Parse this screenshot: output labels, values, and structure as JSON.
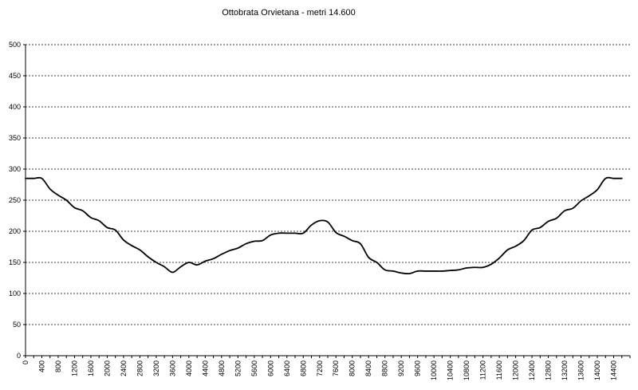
{
  "chart_data": {
    "type": "line",
    "title": "Ottobrata Orvietana  - metri 14.600",
    "xlabel": "",
    "ylabel": "",
    "xlim": [
      0,
      14800
    ],
    "ylim": [
      0,
      500
    ],
    "xticks": [
      0,
      400,
      800,
      1200,
      1600,
      2000,
      2400,
      2800,
      3200,
      3600,
      4000,
      4400,
      4800,
      5200,
      5600,
      6000,
      6400,
      6800,
      7200,
      7600,
      8000,
      8400,
      8800,
      9200,
      9600,
      10000,
      10400,
      10800,
      11200,
      11600,
      12000,
      12400,
      12800,
      13200,
      13600,
      14000,
      14400
    ],
    "yticks": [
      0,
      50,
      100,
      150,
      200,
      250,
      300,
      350,
      400,
      450,
      500
    ],
    "grid": "horizontal-dashed",
    "legend": "none",
    "series": [
      {
        "color": "#000000",
        "x": [
          0,
          200,
          400,
          600,
          800,
          1000,
          1200,
          1400,
          1600,
          1800,
          2000,
          2200,
          2400,
          2600,
          2800,
          3000,
          3200,
          3400,
          3600,
          3800,
          4000,
          4200,
          4400,
          4600,
          4800,
          5000,
          5200,
          5400,
          5600,
          5800,
          6000,
          6200,
          6400,
          6600,
          6800,
          7000,
          7200,
          7400,
          7600,
          7800,
          8000,
          8200,
          8400,
          8600,
          8800,
          9000,
          9200,
          9400,
          9600,
          9800,
          10000,
          10200,
          10400,
          10600,
          10800,
          11000,
          11200,
          11400,
          11600,
          11800,
          12000,
          12200,
          12400,
          12600,
          12800,
          13000,
          13200,
          13400,
          13600,
          13800,
          14000,
          14200,
          14400,
          14600
        ],
        "y": [
          285,
          285,
          285,
          268,
          258,
          250,
          238,
          233,
          222,
          217,
          206,
          202,
          186,
          177,
          170,
          159,
          150,
          143,
          134,
          143,
          150,
          146,
          152,
          156,
          163,
          169,
          173,
          180,
          184,
          185,
          194,
          197,
          197,
          197,
          197,
          210,
          217,
          215,
          198,
          192,
          185,
          180,
          158,
          150,
          138,
          136,
          133,
          132,
          136,
          136,
          136,
          136,
          137,
          138,
          141,
          142,
          142,
          147,
          157,
          170,
          176,
          185,
          202,
          206,
          216,
          221,
          233,
          237,
          249,
          257,
          267,
          285,
          285,
          285
        ]
      }
    ]
  }
}
